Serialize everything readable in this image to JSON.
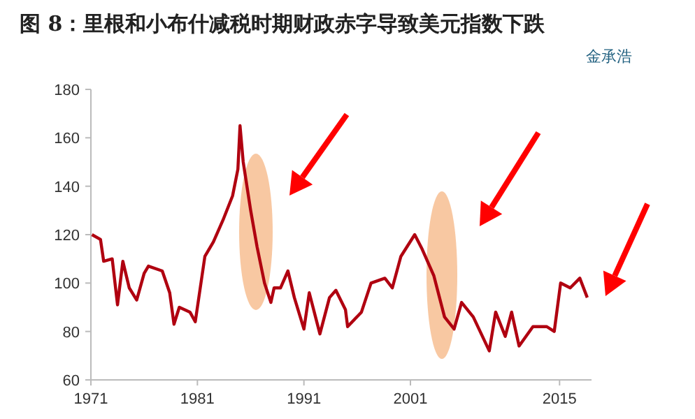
{
  "chart_data": {
    "type": "line",
    "title": "图 8：里根和小布什减税时期财政赤字导致美元指数下跌",
    "annotations": [
      "金承浩"
    ],
    "x": [
      1971.1,
      1971.9,
      1972.2,
      1973,
      1973.5,
      1974,
      1974.6,
      1975.3,
      1976,
      1976.4,
      1977.7,
      1978.4,
      1978.8,
      1979.3,
      1980.3,
      1980.8,
      1981.7,
      1982.5,
      1983.4,
      1984.3,
      1984.8,
      1985.0,
      1985.3,
      1986,
      1986.6,
      1987.3,
      1987.9,
      1988.2,
      1988.8,
      1989.5,
      1990.1,
      1991,
      1991.5,
      1992.5,
      1993.4,
      1994,
      1994.9,
      1995.1,
      1996.4,
      1997.3,
      1998.6,
      1999.3,
      2000.1,
      2001.4,
      2002.1,
      2003.2,
      2004.2,
      2005.1,
      2005.8,
      2006.9,
      2008.4,
      2009,
      2009.9,
      2010.5,
      2011.2,
      2012.5,
      2013.8,
      2014.5,
      2015.1,
      2016,
      2016.9,
      2017.6
    ],
    "series": [
      {
        "color": "#b00010",
        "values": [
          120,
          118,
          109,
          110,
          91,
          109,
          98,
          93,
          104,
          107,
          105,
          96,
          83,
          90,
          88,
          84,
          111,
          117,
          126,
          136,
          147,
          165,
          150,
          130,
          115,
          100,
          92,
          98,
          98,
          105,
          94,
          81,
          96,
          79,
          94,
          97,
          89,
          82,
          88,
          100,
          102,
          98,
          111,
          120,
          114,
          103,
          86,
          81,
          92,
          86,
          72,
          88,
          78,
          88,
          74,
          82,
          82,
          80,
          100,
          98,
          102,
          94
        ]
      }
    ],
    "xlim": [
      1971,
      2018
    ],
    "xticks": [
      1971,
      1981,
      1991,
      2001,
      2015
    ],
    "ylim": [
      60,
      180
    ],
    "yticks": [
      60,
      80,
      100,
      120,
      140,
      160,
      180
    ],
    "grid": false,
    "line_style": "solid",
    "marker": "none"
  }
}
